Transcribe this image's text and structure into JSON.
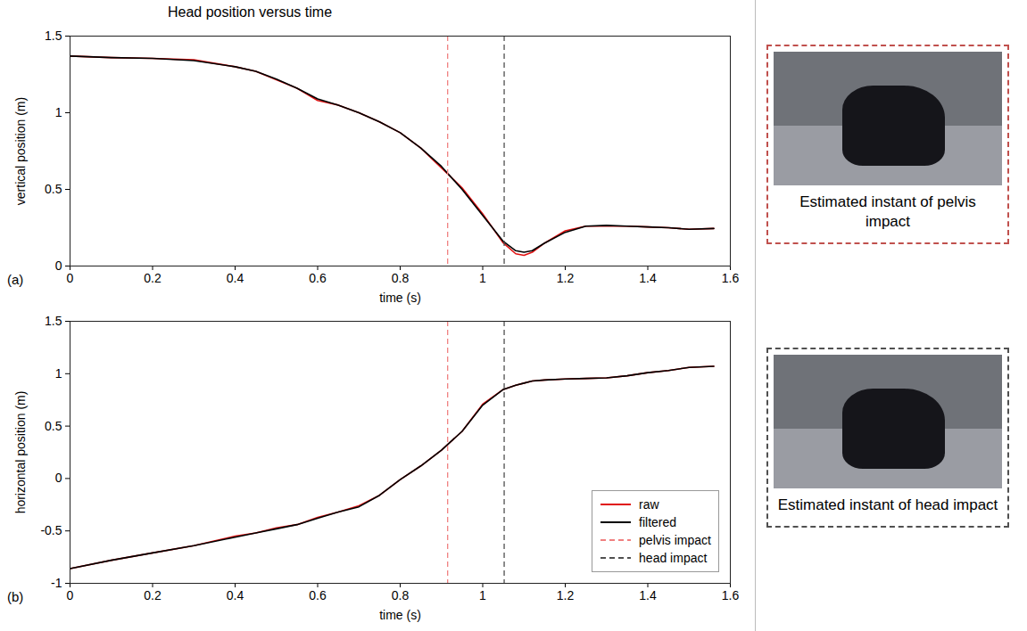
{
  "chart_data": [
    {
      "type": "line",
      "title": "Head position versus time",
      "panel": "(a)",
      "xlabel": "time (s)",
      "ylabel": "vertical position (m)",
      "x": [
        0,
        0.1,
        0.2,
        0.3,
        0.4,
        0.45,
        0.5,
        0.55,
        0.6,
        0.65,
        0.7,
        0.75,
        0.8,
        0.85,
        0.9,
        0.95,
        1.0,
        1.05,
        1.08,
        1.1,
        1.12,
        1.15,
        1.2,
        1.25,
        1.3,
        1.35,
        1.4,
        1.45,
        1.5,
        1.56
      ],
      "series": [
        {
          "name": "raw",
          "color": "#e01010",
          "line_style": "solid",
          "values": [
            1.37,
            1.36,
            1.355,
            1.345,
            1.3,
            1.27,
            1.215,
            1.16,
            1.08,
            1.05,
            1.0,
            0.94,
            0.87,
            0.77,
            0.64,
            0.51,
            0.34,
            0.15,
            0.08,
            0.07,
            0.09,
            0.15,
            0.23,
            0.26,
            0.26,
            0.26,
            0.255,
            0.25,
            0.24,
            0.245
          ]
        },
        {
          "name": "filtered",
          "color": "#000000",
          "line_style": "solid",
          "values": [
            1.37,
            1.36,
            1.355,
            1.34,
            1.3,
            1.27,
            1.22,
            1.16,
            1.09,
            1.05,
            1.0,
            0.94,
            0.87,
            0.77,
            0.65,
            0.5,
            0.33,
            0.16,
            0.1,
            0.09,
            0.1,
            0.15,
            0.22,
            0.26,
            0.265,
            0.26,
            0.255,
            0.25,
            0.24,
            0.245
          ]
        }
      ],
      "vlines": [
        {
          "name": "pelvis impact",
          "x": 0.915,
          "color": "#f08080",
          "line_style": "dashed"
        },
        {
          "name": "head impact",
          "x": 1.052,
          "color": "#505050",
          "line_style": "dashed"
        }
      ],
      "xlim": [
        0,
        1.6
      ],
      "xticks": [
        0,
        0.2,
        0.4,
        0.6,
        0.8,
        1,
        1.2,
        1.4,
        1.6
      ],
      "ylim": [
        0,
        1.5
      ],
      "yticks": [
        0,
        0.5,
        1,
        1.5
      ]
    },
    {
      "type": "line",
      "panel": "(b)",
      "xlabel": "time (s)",
      "ylabel": "horizontal position (m)",
      "x": [
        0,
        0.1,
        0.2,
        0.3,
        0.4,
        0.45,
        0.5,
        0.55,
        0.6,
        0.65,
        0.7,
        0.75,
        0.8,
        0.85,
        0.9,
        0.95,
        1.0,
        1.05,
        1.08,
        1.1,
        1.12,
        1.15,
        1.2,
        1.25,
        1.3,
        1.35,
        1.4,
        1.45,
        1.5,
        1.56
      ],
      "series": [
        {
          "name": "raw",
          "color": "#e01010",
          "line_style": "solid",
          "values": [
            -0.86,
            -0.78,
            -0.71,
            -0.64,
            -0.55,
            -0.52,
            -0.47,
            -0.44,
            -0.37,
            -0.32,
            -0.26,
            -0.16,
            -0.01,
            0.12,
            0.27,
            0.45,
            0.71,
            0.85,
            0.89,
            0.91,
            0.93,
            0.94,
            0.95,
            0.955,
            0.96,
            0.98,
            1.01,
            1.03,
            1.06,
            1.07
          ]
        },
        {
          "name": "filtered",
          "color": "#000000",
          "line_style": "solid",
          "values": [
            -0.86,
            -0.78,
            -0.71,
            -0.64,
            -0.56,
            -0.52,
            -0.48,
            -0.44,
            -0.38,
            -0.32,
            -0.27,
            -0.16,
            -0.01,
            0.12,
            0.27,
            0.45,
            0.7,
            0.85,
            0.89,
            0.91,
            0.93,
            0.94,
            0.95,
            0.955,
            0.96,
            0.98,
            1.01,
            1.03,
            1.06,
            1.07
          ]
        }
      ],
      "vlines": [
        {
          "name": "pelvis impact",
          "x": 0.915,
          "color": "#f08080",
          "line_style": "dashed"
        },
        {
          "name": "head impact",
          "x": 1.052,
          "color": "#505050",
          "line_style": "dashed"
        }
      ],
      "legend": "lower right",
      "xlim": [
        0,
        1.6
      ],
      "xticks": [
        0,
        0.2,
        0.4,
        0.6,
        0.8,
        1,
        1.2,
        1.4,
        1.6
      ],
      "ylim": [
        -1,
        1.5
      ],
      "yticks": [
        -1,
        -0.5,
        0,
        0.5,
        1,
        1.5
      ]
    }
  ],
  "images": [
    {
      "caption": "Estimated instant of pelvis impact",
      "color": "#c0504d"
    },
    {
      "caption": "Estimated instant of head impact",
      "color": "#505050"
    }
  ]
}
